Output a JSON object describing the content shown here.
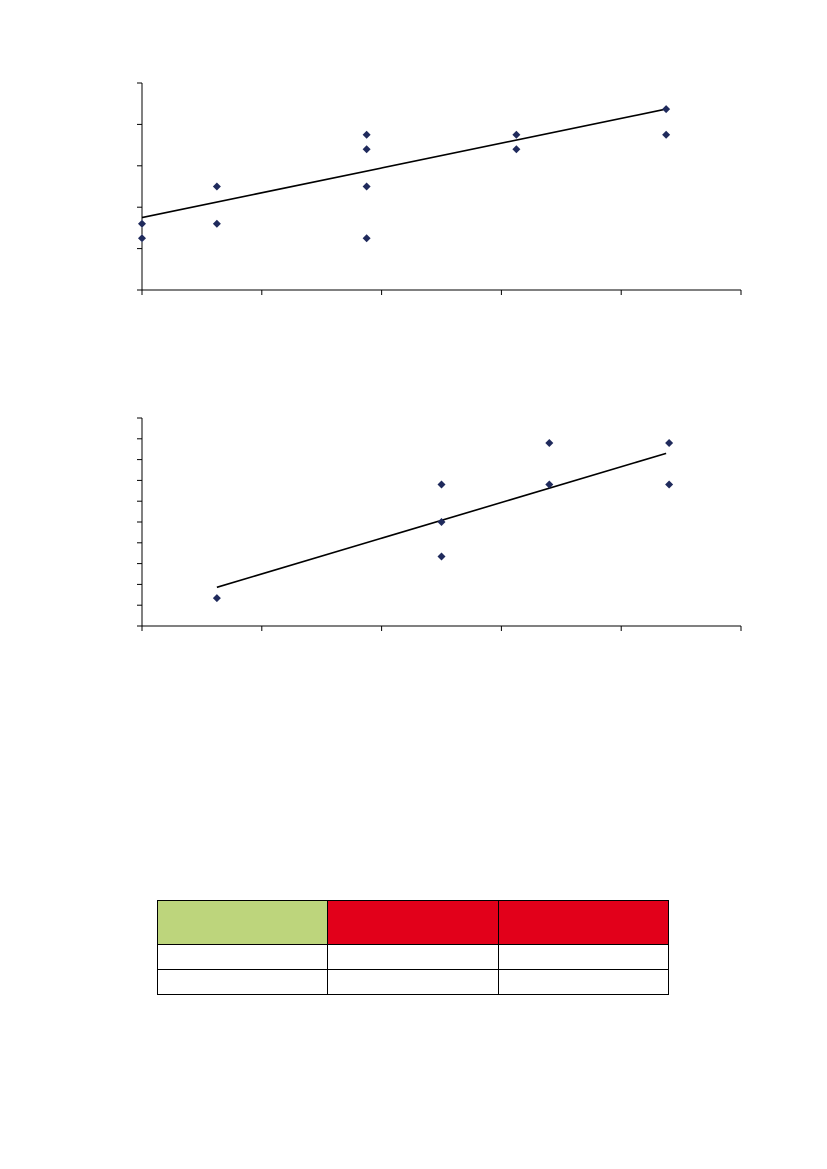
{
  "chart_data": [
    {
      "type": "scatter",
      "title": "",
      "xlabel": "",
      "ylabel": "",
      "xlim": [
        0,
        100
      ],
      "ylim": [
        0,
        50
      ],
      "x_ticks": [
        0,
        20,
        40,
        60,
        80,
        100
      ],
      "y_ticks": [
        0,
        10,
        20,
        30,
        40,
        50
      ],
      "grid": false,
      "legend": "none",
      "marker": "diamond",
      "marker_color": "#1f2a5c",
      "trendline": {
        "type": "linear",
        "x": [
          0,
          87.5
        ],
        "y": [
          17.5,
          43.7
        ]
      },
      "points": [
        {
          "x": 0,
          "y": 16
        },
        {
          "x": 0,
          "y": 12.5
        },
        {
          "x": 12.5,
          "y": 25
        },
        {
          "x": 12.5,
          "y": 16
        },
        {
          "x": 37.5,
          "y": 37.5
        },
        {
          "x": 37.5,
          "y": 34
        },
        {
          "x": 37.5,
          "y": 25
        },
        {
          "x": 37.5,
          "y": 12.5
        },
        {
          "x": 62.5,
          "y": 37.5
        },
        {
          "x": 62.5,
          "y": 34
        },
        {
          "x": 87.5,
          "y": 43.7
        },
        {
          "x": 87.5,
          "y": 37.5
        }
      ]
    },
    {
      "type": "scatter",
      "title": "",
      "xlabel": "",
      "ylabel": "",
      "xlim": [
        0,
        100
      ],
      "ylim": [
        0,
        50
      ],
      "x_ticks": [
        0,
        20,
        40,
        60,
        80,
        100
      ],
      "y_ticks": [
        0,
        5,
        10,
        15,
        20,
        25,
        30,
        35,
        40,
        45,
        50
      ],
      "grid": false,
      "legend": "none",
      "marker": "diamond",
      "marker_color": "#1f2a5c",
      "trendline": {
        "type": "linear",
        "x": [
          12.5,
          87.5
        ],
        "y": [
          9.3,
          41.5
        ]
      },
      "points": [
        {
          "x": 12.5,
          "y": 6.7
        },
        {
          "x": 50,
          "y": 34
        },
        {
          "x": 50,
          "y": 25
        },
        {
          "x": 50,
          "y": 16.7
        },
        {
          "x": 68,
          "y": 44
        },
        {
          "x": 68,
          "y": 34
        },
        {
          "x": 88,
          "y": 44
        },
        {
          "x": 88,
          "y": 34
        }
      ]
    }
  ],
  "table": {
    "header_colors": [
      "#bdd57c",
      "#e2001a",
      "#e2001a"
    ],
    "header": [
      "",
      "",
      ""
    ],
    "rows": [
      [
        "",
        "",
        ""
      ],
      [
        "",
        "",
        ""
      ]
    ]
  }
}
